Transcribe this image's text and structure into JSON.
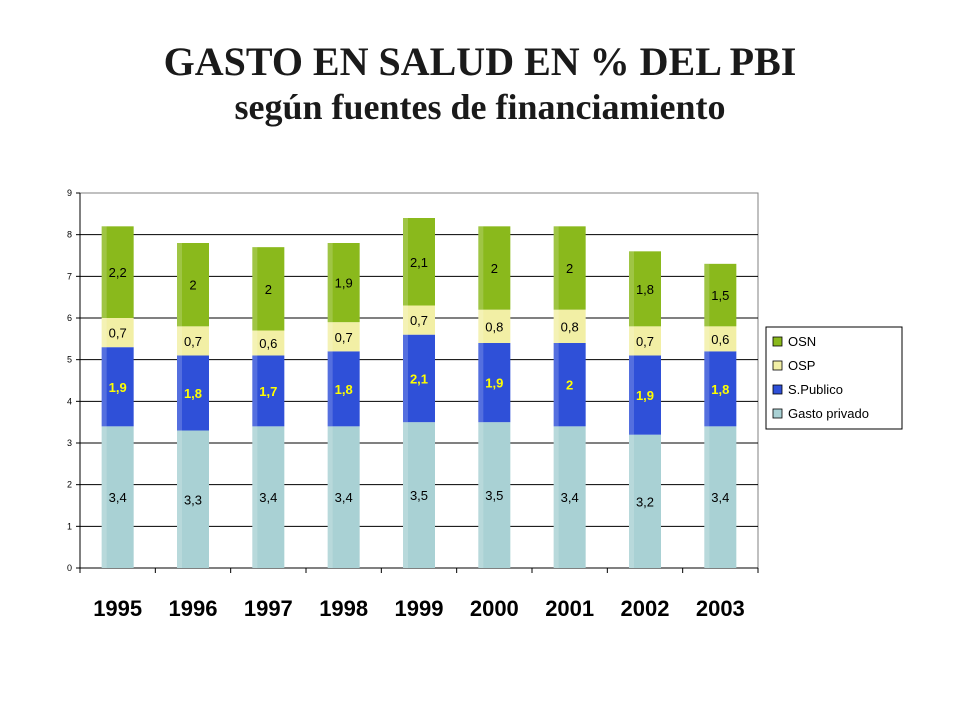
{
  "chart_data": {
    "type": "bar",
    "stacked": true,
    "title": "GASTO EN SALUD EN % DEL PBI",
    "subtitle": "según fuentes de financiamiento",
    "categories": [
      "1995",
      "1996",
      "1997",
      "1998",
      "1999",
      "2000",
      "2001",
      "2002",
      "2003"
    ],
    "series": [
      {
        "name": "Gasto privado",
        "color": "#a9d1d4",
        "label_color": "#000000",
        "values": [
          3.4,
          3.3,
          3.4,
          3.4,
          3.5,
          3.5,
          3.4,
          3.2,
          3.4
        ],
        "labels": [
          "3,4",
          "3,3",
          "3,4",
          "3,4",
          "3,5",
          "3,5",
          "3,4",
          "3,2",
          "3,4"
        ]
      },
      {
        "name": "S.Publico",
        "color": "#2f50d8",
        "label_color": "#ffff00",
        "values": [
          1.9,
          1.8,
          1.7,
          1.8,
          2.1,
          1.9,
          2.0,
          1.9,
          1.8
        ],
        "labels": [
          "1,9",
          "1,8",
          "1,7",
          "1,8",
          "2,1",
          "1,9",
          "2",
          "1,9",
          "1,8"
        ]
      },
      {
        "name": "OSP",
        "color": "#f2efa5",
        "label_color": "#000000",
        "values": [
          0.7,
          0.7,
          0.6,
          0.7,
          0.7,
          0.8,
          0.8,
          0.7,
          0.6
        ],
        "labels": [
          "0,7",
          "0,7",
          "0,6",
          "0,7",
          "0,7",
          "0,8",
          "0,8",
          "0,7",
          "0,6"
        ]
      },
      {
        "name": "OSN",
        "color": "#8ab91c",
        "label_color": "#000000",
        "values": [
          2.2,
          2.0,
          2.0,
          1.9,
          2.1,
          2.0,
          2.0,
          1.8,
          1.5
        ],
        "labels": [
          "2,2",
          "2",
          "2",
          "1,9",
          "2,1",
          "2",
          "2",
          "1,8",
          "1,5"
        ]
      }
    ],
    "legend_order": [
      "OSN",
      "OSP",
      "S.Publico",
      "Gasto privado"
    ],
    "yticks": [
      "0",
      "1",
      "2",
      "3",
      "4",
      "5",
      "6",
      "7",
      "8",
      "9"
    ],
    "ylim": [
      0,
      9
    ],
    "grid": true,
    "legend_position": "right",
    "xlabel": "",
    "ylabel": ""
  }
}
